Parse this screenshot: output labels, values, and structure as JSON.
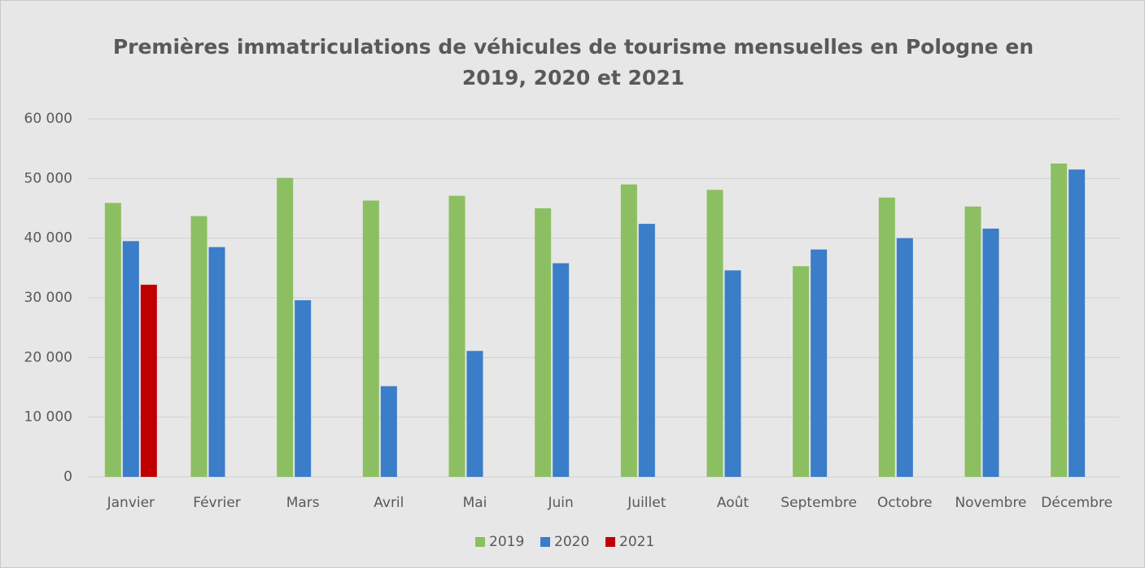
{
  "chart_data": {
    "type": "bar",
    "title": "Premières immatriculations de véhicules de tourisme mensuelles en Pologne en 2019, 2020 et 2021",
    "categories": [
      "Janvier",
      "Février",
      "Mars",
      "Avril",
      "Mai",
      "Juin",
      "Juillet",
      "Août",
      "Septembre",
      "Octobre",
      "Novembre",
      "Décembre"
    ],
    "series": [
      {
        "name": "2019",
        "color": "#8cbf62",
        "values": [
          45900,
          43700,
          50100,
          46300,
          47100,
          45000,
          49000,
          48100,
          35300,
          46800,
          45300,
          52500
        ]
      },
      {
        "name": "2020",
        "color": "#3a7dc9",
        "values": [
          39500,
          38500,
          29600,
          15200,
          21100,
          35800,
          42400,
          34600,
          38100,
          40000,
          41600,
          51500
        ]
      },
      {
        "name": "2021",
        "color": "#c00000",
        "values": [
          32200,
          null,
          null,
          null,
          null,
          null,
          null,
          null,
          null,
          null,
          null,
          null
        ]
      }
    ],
    "ylim": [
      0,
      60000
    ],
    "yticks": [
      0,
      {
        "value": 10000,
        "label": "10 000"
      },
      {
        "value": 20000,
        "label": "20 000"
      },
      {
        "value": 30000,
        "label": "30 000"
      },
      {
        "value": 40000,
        "label": "40 000"
      },
      {
        "value": 50000,
        "label": "50 000"
      },
      {
        "value": 60000,
        "label": "60 000"
      }
    ],
    "grid": true,
    "legend": "bottom"
  }
}
